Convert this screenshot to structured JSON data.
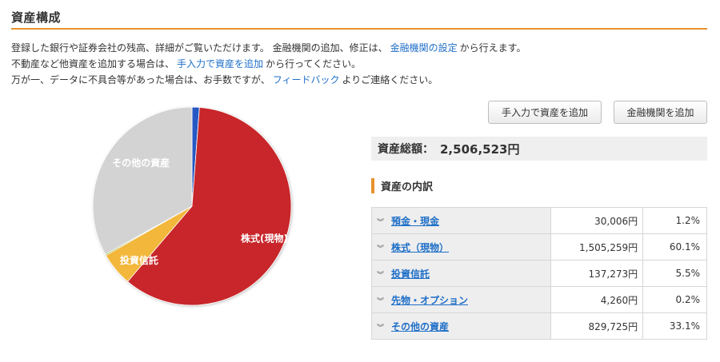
{
  "header": {
    "title": "資産構成"
  },
  "intro": {
    "line1": {
      "before": "登録した銀行や証券会社の残高、詳細がご覧いただけます。 金融機関の追加、修正は、",
      "link": "金融機関の設定",
      "after": "から行えます。"
    },
    "line2": {
      "before": "不動産など他資産を追加する場合は、",
      "link": "手入力で資産を追加",
      "after": "から行ってください。"
    },
    "line3": {
      "before": "万が一、データに不具合等があった場合は、お手数ですが、",
      "link": "フィードバック",
      "after": "よりご連絡ください。"
    }
  },
  "buttons": {
    "manual_add": "手入力で資産を追加",
    "institution_add": "金融機関を追加"
  },
  "summary": {
    "total_label": "資産総額：",
    "total_value": "2,506,523円"
  },
  "breakdown": {
    "heading": "資産の内訳",
    "rows": [
      {
        "name": "預金・現金",
        "amount": "30,006円",
        "percent": "1.2%"
      },
      {
        "name": "株式（現物）",
        "amount": "1,505,259円",
        "percent": "60.1%"
      },
      {
        "name": "投資信託",
        "amount": "137,273円",
        "percent": "5.5%"
      },
      {
        "name": "先物・オプション",
        "amount": "4,260円",
        "percent": "0.2%"
      },
      {
        "name": "その他の資産",
        "amount": "829,725円",
        "percent": "33.1%"
      }
    ]
  },
  "chart_data": {
    "type": "pie",
    "slices": [
      {
        "label": "",
        "value": 1.2,
        "color": "#2559c4"
      },
      {
        "label": "株式(現物)",
        "value": 60.1,
        "color": "#c8282a"
      },
      {
        "label": "投資信託",
        "value": 5.5,
        "color": "#f2b73a"
      },
      {
        "label": "",
        "value": 0.2,
        "color": "#8fb13a"
      },
      {
        "label": "その他の資産",
        "value": 33.1,
        "color": "#d3d3d3"
      }
    ]
  }
}
